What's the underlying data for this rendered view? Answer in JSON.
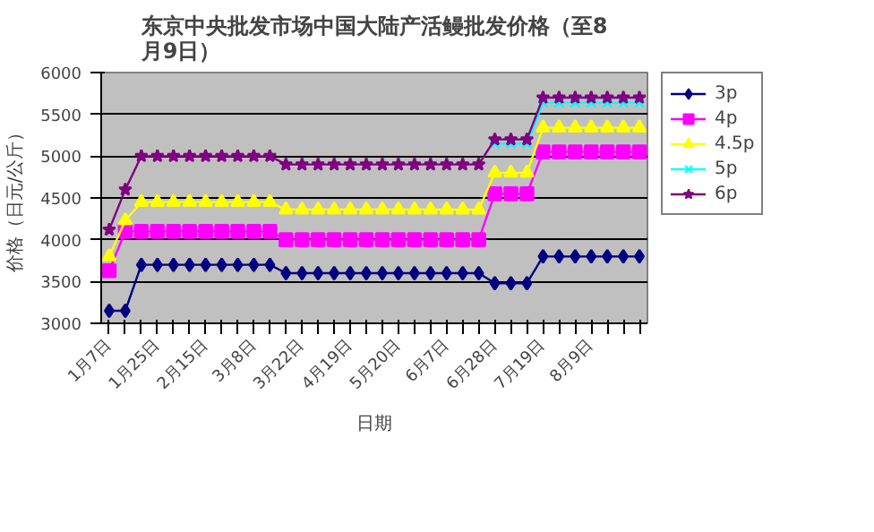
{
  "chart_data": {
    "type": "line",
    "title": "东京中央批发市场中国大陆产活鳗批发价格（至8月9日）",
    "xlabel": "日期",
    "ylabel": "价格（日元/公斤）",
    "categories": [
      "1月7日",
      null,
      null,
      "1月25日",
      null,
      null,
      "2月15日",
      null,
      null,
      "3月8日",
      null,
      null,
      "3月22日",
      null,
      null,
      "4月19日",
      null,
      null,
      "5月20日",
      null,
      null,
      "6月7日",
      null,
      null,
      "6月28日",
      null,
      null,
      "7月19日",
      null,
      null,
      "8月9日",
      null,
      null,
      null
    ],
    "series": [
      {
        "name": "3p",
        "color": "#000080",
        "marker": "diamond",
        "values": [
          3150,
          3150,
          3700,
          3700,
          3700,
          3700,
          3700,
          3700,
          3700,
          3700,
          3700,
          3600,
          3600,
          3600,
          3600,
          3600,
          3600,
          3600,
          3600,
          3600,
          3600,
          3600,
          3600,
          3600,
          3480,
          3480,
          3480,
          3800,
          3800,
          3800,
          3800,
          3800,
          3800,
          3800
        ]
      },
      {
        "name": "4p",
        "color": "#ff00ff",
        "marker": "square",
        "values": [
          3630,
          4100,
          4100,
          4100,
          4100,
          4100,
          4100,
          4100,
          4100,
          4100,
          4100,
          4000,
          4000,
          4000,
          4000,
          4000,
          4000,
          4000,
          4000,
          4000,
          4000,
          4000,
          4000,
          4000,
          4550,
          4550,
          4550,
          5050,
          5050,
          5050,
          5050,
          5050,
          5050,
          5050
        ]
      },
      {
        "name": "4.5p",
        "color": "#ffff00",
        "marker": "triangle",
        "values": [
          3800,
          4230,
          4450,
          4450,
          4450,
          4450,
          4450,
          4450,
          4450,
          4450,
          4450,
          4360,
          4360,
          4360,
          4360,
          4360,
          4360,
          4360,
          4360,
          4360,
          4360,
          4360,
          4360,
          4360,
          4800,
          4800,
          4800,
          5340,
          5340,
          5340,
          5340,
          5340,
          5340,
          5340
        ]
      },
      {
        "name": "5p",
        "color": "#00ffff",
        "marker": "cross",
        "values": [
          null,
          null,
          null,
          null,
          null,
          null,
          null,
          null,
          null,
          null,
          null,
          null,
          null,
          null,
          null,
          null,
          null,
          null,
          null,
          null,
          null,
          null,
          null,
          null,
          5150,
          5150,
          5150,
          5640,
          5640,
          5640,
          5640,
          5640,
          5640,
          5640
        ]
      },
      {
        "name": "6p",
        "color": "#800080",
        "marker": "star",
        "values": [
          4120,
          4600,
          5000,
          5000,
          5000,
          5000,
          5000,
          5000,
          5000,
          5000,
          5000,
          4900,
          4900,
          4900,
          4900,
          4900,
          4900,
          4900,
          4900,
          4900,
          4900,
          4900,
          4900,
          4900,
          5200,
          5200,
          5200,
          5700,
          5700,
          5700,
          5700,
          5700,
          5700,
          5700
        ]
      }
    ],
    "ylim": [
      3000,
      6000
    ],
    "yticks": [
      3000,
      3500,
      4000,
      4500,
      5000,
      5500,
      6000
    ],
    "grid": "y",
    "legend": "right",
    "line_style": "solid"
  }
}
